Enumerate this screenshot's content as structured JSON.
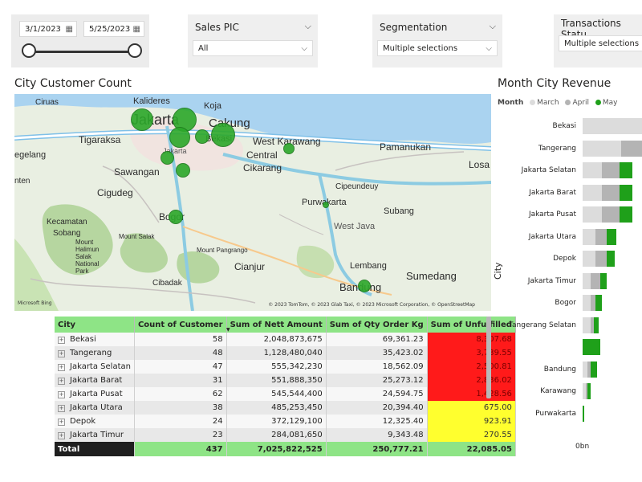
{
  "date_slicer": {
    "start": "3/1/2023",
    "end": "5/25/2023",
    "start_level": 0.0,
    "end_level": 1.0
  },
  "slicers": [
    {
      "title": "Sales PIC",
      "value": "All"
    },
    {
      "title": "Segmentation",
      "value": "Multiple selections"
    },
    {
      "title": "Transactions Statu",
      "value": "Multiple selections"
    }
  ],
  "map": {
    "title": "City Customer Count",
    "labels": [
      {
        "text": "Ciruas"
      },
      {
        "text": "Kalideres"
      },
      {
        "text": "Koja"
      },
      {
        "text": "Jakarta"
      },
      {
        "text": "Cakung"
      },
      {
        "text": "Tigaraksa"
      },
      {
        "text": "Bekasi"
      },
      {
        "text": "West Karawang"
      },
      {
        "text": "Pamanukan"
      },
      {
        "text": "egelang"
      },
      {
        "text": "Central"
      },
      {
        "text": "Cikarang"
      },
      {
        "text": "Losa"
      },
      {
        "text": "Sawangan"
      },
      {
        "text": "Cigudeg"
      },
      {
        "text": "Cipeundeuy"
      },
      {
        "text": "Purwakarta"
      },
      {
        "text": "Subang"
      },
      {
        "text": "Kecamatan"
      },
      {
        "text": "Sobang"
      },
      {
        "text": "Bogor"
      },
      {
        "text": "West Java"
      },
      {
        "text": "Mount Salak"
      },
      {
        "text": "Mount Halimun Salak National Park"
      },
      {
        "text": "Mount Pangrango"
      },
      {
        "text": "Cianjur"
      },
      {
        "text": "Lembang"
      },
      {
        "text": "Sumedang"
      },
      {
        "text": "Cibadak"
      },
      {
        "text": "Bandung"
      },
      {
        "text": "Jakarta"
      },
      {
        "text": "nten"
      }
    ],
    "attribution": "© 2023 TomTom, © 2023 Glab Taxi, © 2023 Microsoft Corporation, © OpenStreetMap",
    "provider": "Microsoft Bing"
  },
  "table": {
    "columns": [
      "City",
      "Count of Customer",
      "Sum of Nett Amount",
      "Sum of Qty Order Kg",
      "Sum of Unfulfilled"
    ],
    "rows": [
      {
        "city": "Bekasi",
        "count": "58",
        "nett": "2,048,873,675",
        "qty": "69,361.23",
        "unfulfilled": "8,307.68",
        "status": "red"
      },
      {
        "city": "Tangerang",
        "count": "48",
        "nett": "1,128,480,040",
        "qty": "35,423.02",
        "unfulfilled": "3,739.55",
        "status": "red"
      },
      {
        "city": "Jakarta Selatan",
        "count": "47",
        "nett": "555,342,230",
        "qty": "18,562.09",
        "unfulfilled": "2,500.81",
        "status": "red"
      },
      {
        "city": "Jakarta Barat",
        "count": "31",
        "nett": "551,888,350",
        "qty": "25,273.12",
        "unfulfilled": "2,836.02",
        "status": "red"
      },
      {
        "city": "Jakarta Pusat",
        "count": "62",
        "nett": "545,544,400",
        "qty": "24,594.75",
        "unfulfilled": "1,428.56",
        "status": "red"
      },
      {
        "city": "Jakarta Utara",
        "count": "38",
        "nett": "485,253,450",
        "qty": "20,394.40",
        "unfulfilled": "675.00",
        "status": "yellow"
      },
      {
        "city": "Depok",
        "count": "24",
        "nett": "372,129,100",
        "qty": "12,325.40",
        "unfulfilled": "923.91",
        "status": "yellow"
      },
      {
        "city": "Jakarta Timur",
        "count": "23",
        "nett": "284,081,650",
        "qty": "9,343.48",
        "unfulfilled": "270.55",
        "status": "yellow"
      }
    ],
    "total": {
      "label": "Total",
      "count": "437",
      "nett": "7,025,822,525",
      "qty": "250,777.21",
      "unfulfilled": "22,085.05"
    }
  },
  "revenue_chart": {
    "title": "Month City Revenue",
    "legend_title": "Month",
    "legend": [
      {
        "name": "March",
        "color": "#dcdcdc"
      },
      {
        "name": "April",
        "color": "#b4b4b4"
      },
      {
        "name": "May",
        "color": "#1fa01a"
      }
    ],
    "axis_label": "City",
    "zero_label": "0bn",
    "cities": [
      {
        "name": "Bekasi"
      },
      {
        "name": "Tangerang"
      },
      {
        "name": "Jakarta Selatan"
      },
      {
        "name": "Jakarta Barat"
      },
      {
        "name": "Jakarta Pusat"
      },
      {
        "name": "Jakarta Utara"
      },
      {
        "name": "Depok"
      },
      {
        "name": "Jakarta Timur"
      },
      {
        "name": "Bogor"
      },
      {
        "name": "Tangerang Selatan"
      },
      {
        "name": ""
      },
      {
        "name": "Bandung"
      },
      {
        "name": "Karawang"
      },
      {
        "name": "Purwakarta"
      }
    ]
  }
}
